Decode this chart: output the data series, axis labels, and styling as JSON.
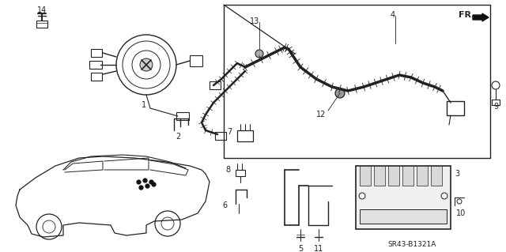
{
  "bg_color": "#ffffff",
  "diagram_code": "SR43-B1321A",
  "line_color": "#222222",
  "fig_width": 6.4,
  "fig_height": 3.19,
  "dpi": 100,
  "font_size": 7
}
